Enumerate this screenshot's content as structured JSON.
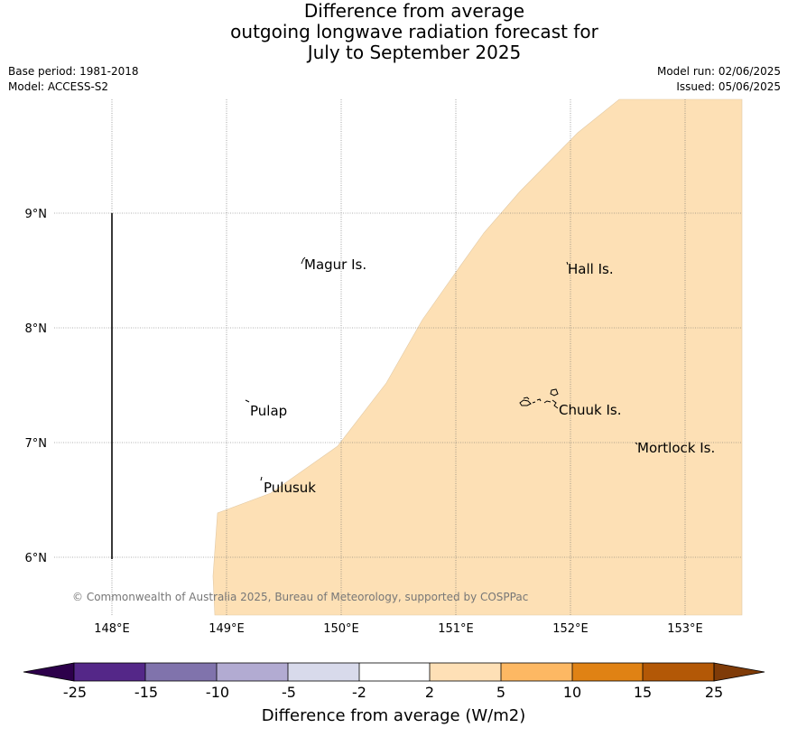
{
  "title_lines": [
    "Difference from average",
    "outgoing longwave radiation forecast for",
    "July to September 2025"
  ],
  "base_period": "Base period: 1981-2018",
  "model": "Model: ACCESS-S2",
  "model_run": "Model run: 02/06/2025",
  "issued": "Issued: 05/06/2025",
  "map": {
    "lat_ticks": [
      "9°N",
      "8°N",
      "7°N",
      "6°N"
    ],
    "lon_ticks": [
      "148°E",
      "149°E",
      "150°E",
      "151°E",
      "152°E",
      "153°E"
    ],
    "places": [
      "Magur Is.",
      "Hall Is.",
      "Pulap",
      "Chuuk Is.",
      "Mortlock Is.",
      "Pulusuk"
    ],
    "fill_color": "#fde0b5",
    "copyright": "© Commonwealth of Australia 2025, Bureau of Meteorology, supported by COSPPac"
  },
  "colorbar": {
    "ticks": [
      "-25",
      "-15",
      "-10",
      "-5",
      "-2",
      "2",
      "5",
      "10",
      "15",
      "25"
    ],
    "colors": [
      "#2d004b",
      "#542788",
      "#8073ac",
      "#b2abd2",
      "#d8daeb",
      "#ffffff",
      "#fee0b6",
      "#fdb863",
      "#e08214",
      "#b35806",
      "#7f3b08"
    ],
    "label": "Difference from average (W/m2)"
  }
}
